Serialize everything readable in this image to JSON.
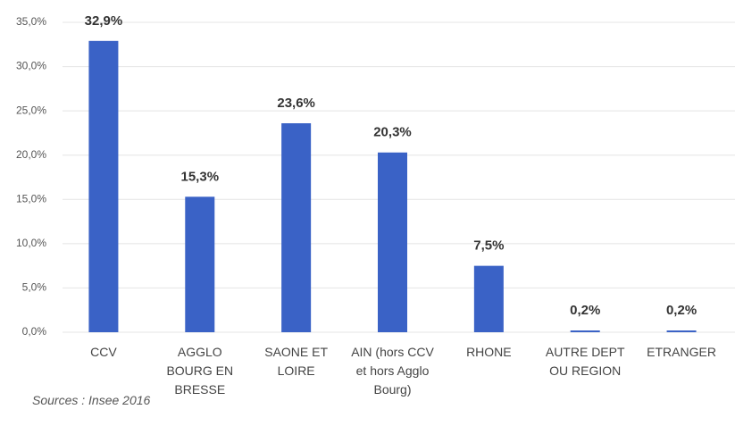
{
  "chart_data": {
    "type": "bar",
    "categories": [
      "CCV",
      "AGGLO BOURG EN BRESSE",
      "SAONE ET LOIRE",
      "AIN (hors CCV et hors Agglo Bourg)",
      "RHONE",
      "AUTRE DEPT OU REGION",
      "ETRANGER"
    ],
    "values": [
      32.9,
      15.3,
      23.6,
      20.3,
      7.5,
      0.2,
      0.2
    ],
    "value_labels": [
      "32,9%",
      "15,3%",
      "23,6%",
      "20,3%",
      "7,5%",
      "0,2%",
      "0,2%"
    ],
    "color": "#3a62c6",
    "ylim": [
      0,
      35
    ],
    "yticks": [
      {
        "value": 0,
        "label": "0,0%"
      },
      {
        "value": 5,
        "label": "5,0%"
      },
      {
        "value": 10,
        "label": "10,0%"
      },
      {
        "value": 15,
        "label": "15,0%"
      },
      {
        "value": 20,
        "label": "20,0%"
      },
      {
        "value": 25,
        "label": "25,0%"
      },
      {
        "value": 30,
        "label": "30,0%"
      },
      {
        "value": 35,
        "label": "35,0%"
      }
    ],
    "grid": true,
    "source": "Sources : Insee 2016"
  }
}
